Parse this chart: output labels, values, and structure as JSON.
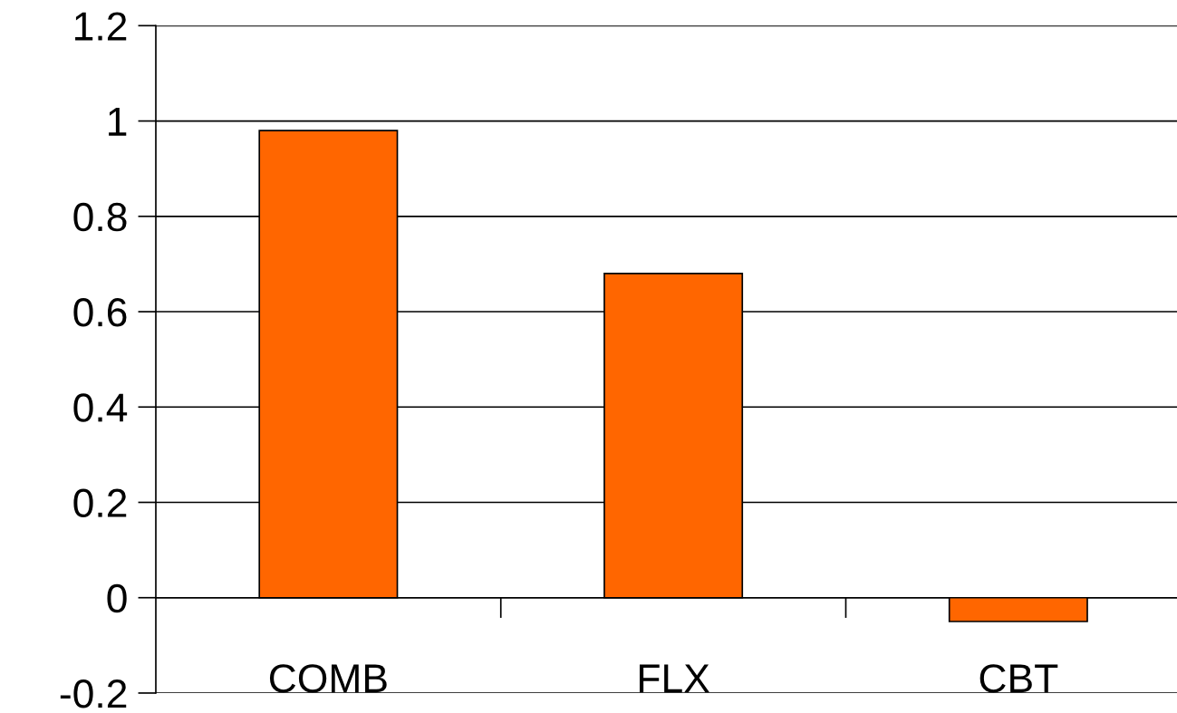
{
  "chart_data": {
    "type": "bar",
    "categories": [
      "COMB",
      "FLX",
      "CBT"
    ],
    "values": [
      0.98,
      0.68,
      -0.05
    ],
    "color": "#ff6600",
    "ylim": [
      -0.2,
      1.2
    ],
    "yticks": [
      {
        "value": -0.2,
        "label": "-0.2"
      },
      0,
      0.2,
      0.4,
      0.6,
      0.8,
      1,
      1.2
    ],
    "grid": "y"
  }
}
